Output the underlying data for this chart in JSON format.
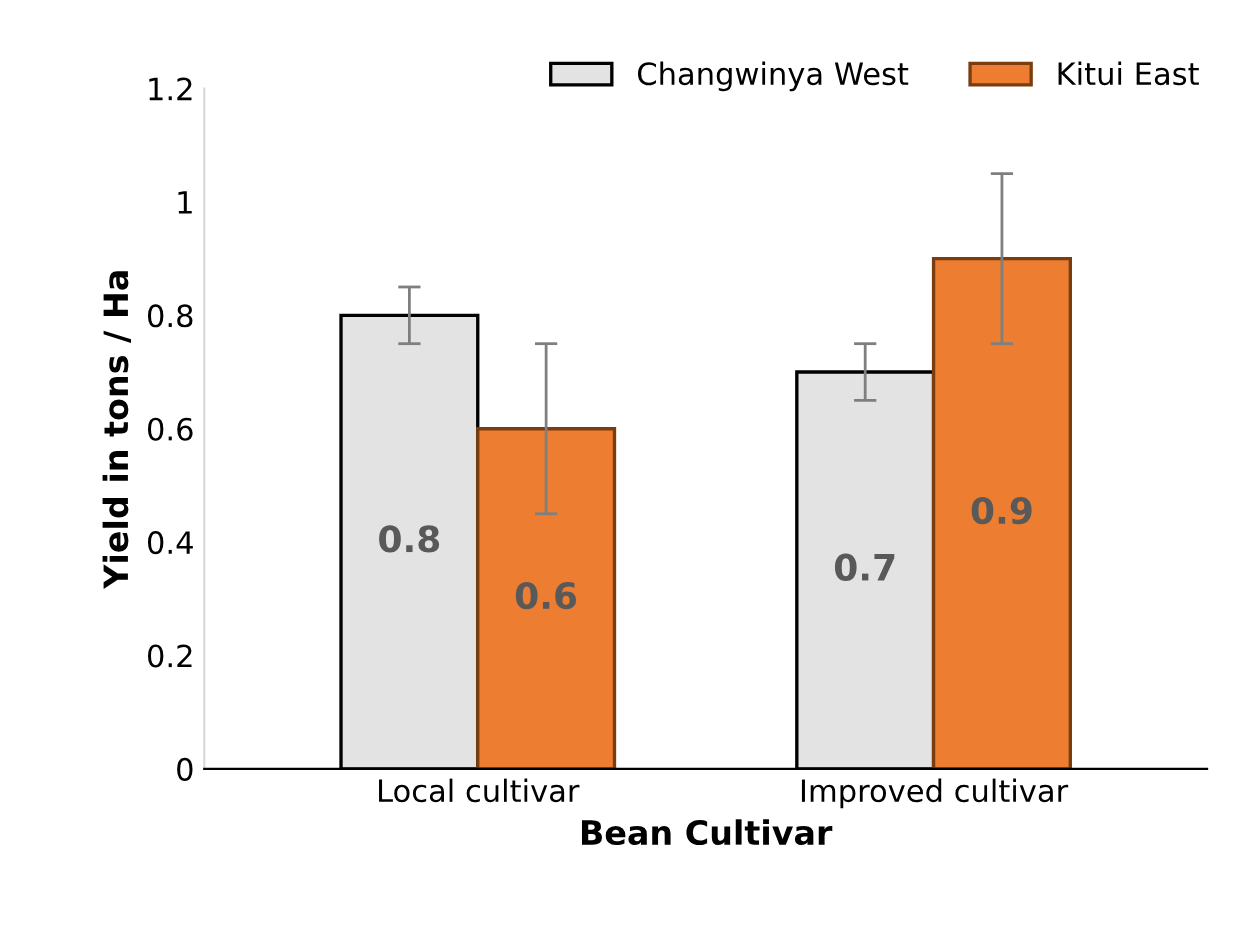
{
  "chart_data": {
    "type": "bar",
    "xlabel": "Bean Cultivar",
    "ylabel": "Yield in tons / Ha",
    "categories": [
      "Local cultivar",
      "Improved cultivar"
    ],
    "series": [
      {
        "name": "Changwinya West",
        "color": "#e3e3e3",
        "values": [
          0.8,
          0.7
        ],
        "errors": [
          0.05,
          0.05
        ]
      },
      {
        "name": "Kitui East",
        "color": "#ed7d31",
        "values": [
          0.6,
          0.9
        ],
        "errors": [
          0.15,
          0.15
        ]
      }
    ],
    "ylim": [
      0,
      1.2
    ],
    "yticks": [
      0,
      0.2,
      0.4,
      0.6,
      0.8,
      1,
      1.2
    ],
    "grid": false,
    "legend": "top right",
    "data_labels": true
  }
}
